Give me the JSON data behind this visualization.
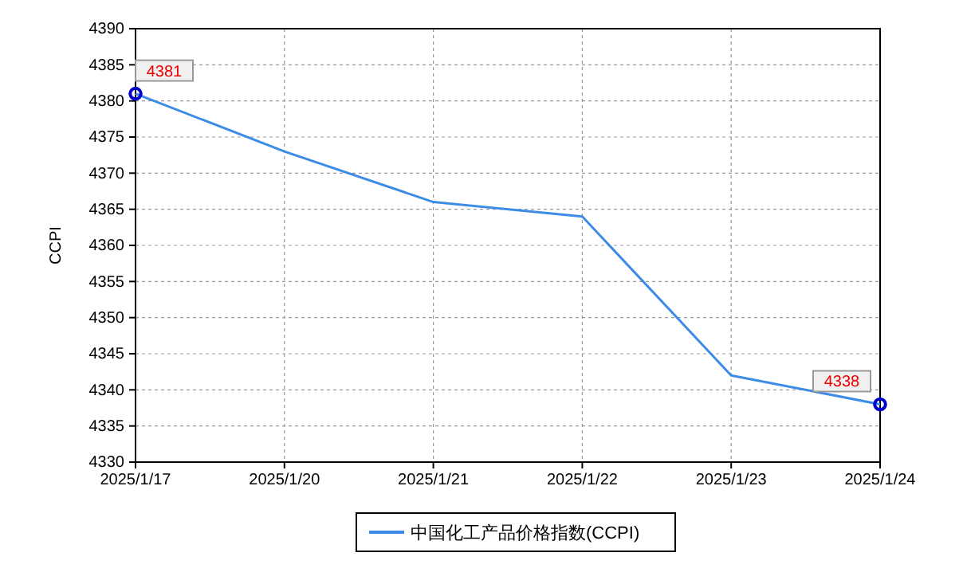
{
  "chart_data": {
    "type": "line",
    "ylabel": "CCPI",
    "categories": [
      "2025/1/17",
      "2025/1/20",
      "2025/1/21",
      "2025/1/22",
      "2025/1/23",
      "2025/1/24"
    ],
    "series": [
      {
        "name": "中国化工产品价格指数(CCPI)",
        "color": "#3c8ce6",
        "values": [
          4381,
          4373,
          4366,
          4364,
          4342,
          4338
        ]
      },
      {
        "type": "scatter",
        "color": "#0000cc",
        "values": [
          4381,
          null,
          null,
          null,
          null,
          4338
        ],
        "value_labels": [
          "4381",
          null,
          null,
          null,
          null,
          "4338"
        ]
      }
    ],
    "ylim": [
      4330,
      4390
    ],
    "yticks": [
      4330,
      4335,
      4340,
      4345,
      4350,
      4355,
      4360,
      4365,
      4370,
      4375,
      4380,
      4385,
      4390
    ],
    "grid": true,
    "legend": "bottom"
  }
}
